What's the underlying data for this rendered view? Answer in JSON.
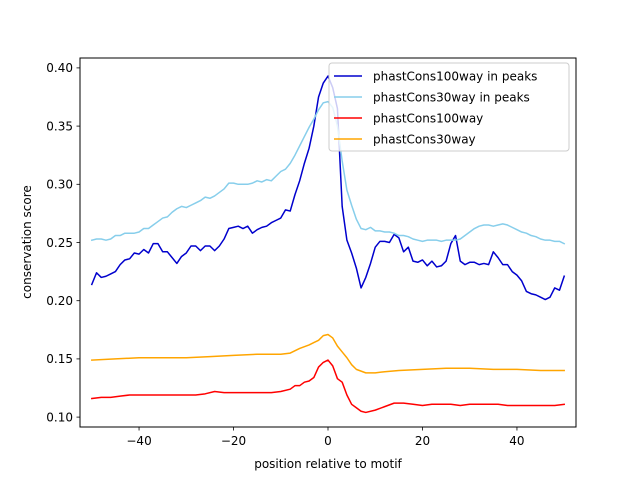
{
  "chart_data": {
    "type": "line",
    "title": "",
    "xlabel": "position relative to motif",
    "ylabel": "conservation score",
    "xlim": [
      -52.5,
      52.5
    ],
    "ylim": [
      0.0915,
      0.4085
    ],
    "xticks": [
      -40,
      -20,
      0,
      20,
      40
    ],
    "xtick_labels": [
      "−40",
      "−20",
      "0",
      "20",
      "40"
    ],
    "yticks": [
      0.1,
      0.15,
      0.2,
      0.25,
      0.3,
      0.35,
      0.4
    ],
    "ytick_labels": [
      "0.10",
      "0.15",
      "0.20",
      "0.25",
      "0.30",
      "0.35",
      "0.40"
    ],
    "grid": false,
    "legend_position": "top-right",
    "series": [
      {
        "name": "phastCons100way in peaks",
        "color": "#0000cd",
        "points": [
          [
            -50,
            0.214
          ],
          [
            -49,
            0.224
          ],
          [
            -48,
            0.22
          ],
          [
            -47,
            0.221
          ],
          [
            -46,
            0.223
          ],
          [
            -45,
            0.225
          ],
          [
            -44,
            0.231
          ],
          [
            -43,
            0.235
          ],
          [
            -42,
            0.236
          ],
          [
            -41,
            0.241
          ],
          [
            -40,
            0.24
          ],
          [
            -39,
            0.244
          ],
          [
            -38,
            0.241
          ],
          [
            -37,
            0.249
          ],
          [
            -36,
            0.249
          ],
          [
            -35,
            0.242
          ],
          [
            -34,
            0.242
          ],
          [
            -33,
            0.237
          ],
          [
            -32,
            0.232
          ],
          [
            -31,
            0.238
          ],
          [
            -30,
            0.241
          ],
          [
            -29,
            0.247
          ],
          [
            -28,
            0.247
          ],
          [
            -27,
            0.243
          ],
          [
            -26,
            0.247
          ],
          [
            -25,
            0.247
          ],
          [
            -24,
            0.243
          ],
          [
            -23,
            0.247
          ],
          [
            -22,
            0.253
          ],
          [
            -21,
            0.262
          ],
          [
            -20,
            0.263
          ],
          [
            -19,
            0.264
          ],
          [
            -18,
            0.262
          ],
          [
            -17,
            0.264
          ],
          [
            -16,
            0.258
          ],
          [
            -15,
            0.261
          ],
          [
            -14,
            0.263
          ],
          [
            -13,
            0.264
          ],
          [
            -12,
            0.267
          ],
          [
            -11,
            0.269
          ],
          [
            -10,
            0.271
          ],
          [
            -9,
            0.278
          ],
          [
            -8,
            0.277
          ],
          [
            -7,
            0.291
          ],
          [
            -6,
            0.303
          ],
          [
            -5,
            0.318
          ],
          [
            -4,
            0.331
          ],
          [
            -3,
            0.35
          ],
          [
            -2,
            0.375
          ],
          [
            -1,
            0.387
          ],
          [
            0,
            0.393
          ],
          [
            1,
            0.383
          ],
          [
            2,
            0.365
          ],
          [
            3,
            0.281
          ],
          [
            4,
            0.252
          ],
          [
            5,
            0.241
          ],
          [
            6,
            0.228
          ],
          [
            7,
            0.211
          ],
          [
            8,
            0.22
          ],
          [
            9,
            0.232
          ],
          [
            10,
            0.246
          ],
          [
            11,
            0.251
          ],
          [
            12,
            0.251
          ],
          [
            13,
            0.25
          ],
          [
            14,
            0.257
          ],
          [
            15,
            0.254
          ],
          [
            16,
            0.242
          ],
          [
            17,
            0.246
          ],
          [
            18,
            0.234
          ],
          [
            19,
            0.233
          ],
          [
            20,
            0.235
          ],
          [
            21,
            0.23
          ],
          [
            22,
            0.234
          ],
          [
            23,
            0.229
          ],
          [
            24,
            0.23
          ],
          [
            25,
            0.234
          ],
          [
            26,
            0.249
          ],
          [
            27,
            0.256
          ],
          [
            28,
            0.234
          ],
          [
            29,
            0.231
          ],
          [
            30,
            0.233
          ],
          [
            31,
            0.233
          ],
          [
            32,
            0.231
          ],
          [
            33,
            0.232
          ],
          [
            34,
            0.231
          ],
          [
            35,
            0.242
          ],
          [
            36,
            0.237
          ],
          [
            37,
            0.231
          ],
          [
            38,
            0.231
          ],
          [
            39,
            0.225
          ],
          [
            40,
            0.222
          ],
          [
            41,
            0.217
          ],
          [
            42,
            0.208
          ],
          [
            43,
            0.206
          ],
          [
            44,
            0.205
          ],
          [
            45,
            0.203
          ],
          [
            46,
            0.201
          ],
          [
            47,
            0.203
          ],
          [
            48,
            0.211
          ],
          [
            49,
            0.209
          ],
          [
            50,
            0.221
          ]
        ]
      },
      {
        "name": "phastCons30way in peaks",
        "color": "#87ceeb",
        "points": [
          [
            -50,
            0.252
          ],
          [
            -49,
            0.253
          ],
          [
            -48,
            0.253
          ],
          [
            -47,
            0.252
          ],
          [
            -46,
            0.253
          ],
          [
            -45,
            0.256
          ],
          [
            -44,
            0.256
          ],
          [
            -43,
            0.258
          ],
          [
            -42,
            0.258
          ],
          [
            -41,
            0.258
          ],
          [
            -40,
            0.259
          ],
          [
            -39,
            0.262
          ],
          [
            -38,
            0.262
          ],
          [
            -37,
            0.265
          ],
          [
            -36,
            0.268
          ],
          [
            -35,
            0.271
          ],
          [
            -34,
            0.272
          ],
          [
            -33,
            0.276
          ],
          [
            -32,
            0.279
          ],
          [
            -31,
            0.281
          ],
          [
            -30,
            0.28
          ],
          [
            -29,
            0.282
          ],
          [
            -28,
            0.284
          ],
          [
            -27,
            0.286
          ],
          [
            -26,
            0.289
          ],
          [
            -25,
            0.288
          ],
          [
            -24,
            0.29
          ],
          [
            -23,
            0.293
          ],
          [
            -22,
            0.296
          ],
          [
            -21,
            0.301
          ],
          [
            -20,
            0.301
          ],
          [
            -19,
            0.3
          ],
          [
            -18,
            0.3
          ],
          [
            -17,
            0.3
          ],
          [
            -16,
            0.301
          ],
          [
            -15,
            0.303
          ],
          [
            -14,
            0.302
          ],
          [
            -13,
            0.304
          ],
          [
            -12,
            0.303
          ],
          [
            -11,
            0.307
          ],
          [
            -10,
            0.311
          ],
          [
            -9,
            0.313
          ],
          [
            -8,
            0.318
          ],
          [
            -7,
            0.325
          ],
          [
            -6,
            0.333
          ],
          [
            -5,
            0.341
          ],
          [
            -4,
            0.349
          ],
          [
            -3,
            0.356
          ],
          [
            -2,
            0.364
          ],
          [
            -1,
            0.37
          ],
          [
            0,
            0.371
          ],
          [
            1,
            0.366
          ],
          [
            2,
            0.35
          ],
          [
            3,
            0.32
          ],
          [
            4,
            0.295
          ],
          [
            5,
            0.282
          ],
          [
            6,
            0.27
          ],
          [
            7,
            0.262
          ],
          [
            8,
            0.261
          ],
          [
            9,
            0.263
          ],
          [
            10,
            0.26
          ],
          [
            11,
            0.26
          ],
          [
            12,
            0.259
          ],
          [
            13,
            0.259
          ],
          [
            14,
            0.258
          ],
          [
            15,
            0.256
          ],
          [
            16,
            0.256
          ],
          [
            17,
            0.255
          ],
          [
            18,
            0.253
          ],
          [
            19,
            0.252
          ],
          [
            20,
            0.251
          ],
          [
            21,
            0.252
          ],
          [
            22,
            0.252
          ],
          [
            23,
            0.252
          ],
          [
            24,
            0.251
          ],
          [
            25,
            0.252
          ],
          [
            26,
            0.252
          ],
          [
            27,
            0.252
          ],
          [
            28,
            0.253
          ],
          [
            29,
            0.256
          ],
          [
            30,
            0.259
          ],
          [
            31,
            0.262
          ],
          [
            32,
            0.264
          ],
          [
            33,
            0.265
          ],
          [
            34,
            0.265
          ],
          [
            35,
            0.264
          ],
          [
            36,
            0.265
          ],
          [
            37,
            0.266
          ],
          [
            38,
            0.265
          ],
          [
            39,
            0.263
          ],
          [
            40,
            0.261
          ],
          [
            41,
            0.259
          ],
          [
            42,
            0.258
          ],
          [
            43,
            0.256
          ],
          [
            44,
            0.255
          ],
          [
            45,
            0.253
          ],
          [
            46,
            0.252
          ],
          [
            47,
            0.252
          ],
          [
            48,
            0.251
          ],
          [
            49,
            0.251
          ],
          [
            50,
            0.249
          ]
        ]
      },
      {
        "name": "phastCons100way",
        "color": "#ff0000",
        "points": [
          [
            -50,
            0.116
          ],
          [
            -48,
            0.117
          ],
          [
            -46,
            0.117
          ],
          [
            -44,
            0.118
          ],
          [
            -42,
            0.119
          ],
          [
            -40,
            0.119
          ],
          [
            -38,
            0.119
          ],
          [
            -36,
            0.119
          ],
          [
            -34,
            0.119
          ],
          [
            -32,
            0.119
          ],
          [
            -30,
            0.119
          ],
          [
            -28,
            0.119
          ],
          [
            -26,
            0.12
          ],
          [
            -24,
            0.122
          ],
          [
            -22,
            0.121
          ],
          [
            -20,
            0.121
          ],
          [
            -18,
            0.121
          ],
          [
            -16,
            0.121
          ],
          [
            -14,
            0.121
          ],
          [
            -12,
            0.121
          ],
          [
            -10,
            0.122
          ],
          [
            -8,
            0.124
          ],
          [
            -7,
            0.127
          ],
          [
            -6,
            0.127
          ],
          [
            -5,
            0.13
          ],
          [
            -4,
            0.131
          ],
          [
            -3,
            0.134
          ],
          [
            -2,
            0.143
          ],
          [
            -1,
            0.147
          ],
          [
            0,
            0.149
          ],
          [
            1,
            0.144
          ],
          [
            2,
            0.133
          ],
          [
            3,
            0.13
          ],
          [
            4,
            0.119
          ],
          [
            5,
            0.111
          ],
          [
            6,
            0.108
          ],
          [
            7,
            0.105
          ],
          [
            8,
            0.104
          ],
          [
            10,
            0.106
          ],
          [
            12,
            0.109
          ],
          [
            14,
            0.112
          ],
          [
            16,
            0.112
          ],
          [
            18,
            0.111
          ],
          [
            20,
            0.11
          ],
          [
            22,
            0.111
          ],
          [
            24,
            0.111
          ],
          [
            26,
            0.111
          ],
          [
            28,
            0.11
          ],
          [
            30,
            0.111
          ],
          [
            32,
            0.111
          ],
          [
            34,
            0.111
          ],
          [
            36,
            0.111
          ],
          [
            38,
            0.11
          ],
          [
            40,
            0.11
          ],
          [
            42,
            0.11
          ],
          [
            44,
            0.11
          ],
          [
            46,
            0.11
          ],
          [
            48,
            0.11
          ],
          [
            50,
            0.111
          ]
        ]
      },
      {
        "name": "phastCons30way",
        "color": "#ffa500",
        "points": [
          [
            -50,
            0.149
          ],
          [
            -45,
            0.15
          ],
          [
            -40,
            0.151
          ],
          [
            -35,
            0.151
          ],
          [
            -30,
            0.151
          ],
          [
            -25,
            0.152
          ],
          [
            -20,
            0.153
          ],
          [
            -15,
            0.154
          ],
          [
            -10,
            0.154
          ],
          [
            -8,
            0.155
          ],
          [
            -6,
            0.159
          ],
          [
            -4,
            0.162
          ],
          [
            -3,
            0.164
          ],
          [
            -2,
            0.166
          ],
          [
            -1,
            0.17
          ],
          [
            0,
            0.171
          ],
          [
            1,
            0.168
          ],
          [
            2,
            0.161
          ],
          [
            3,
            0.156
          ],
          [
            4,
            0.151
          ],
          [
            5,
            0.145
          ],
          [
            6,
            0.141
          ],
          [
            8,
            0.138
          ],
          [
            10,
            0.138
          ],
          [
            12,
            0.139
          ],
          [
            15,
            0.14
          ],
          [
            20,
            0.141
          ],
          [
            25,
            0.142
          ],
          [
            30,
            0.142
          ],
          [
            35,
            0.141
          ],
          [
            40,
            0.141
          ],
          [
            45,
            0.14
          ],
          [
            50,
            0.14
          ]
        ]
      }
    ]
  }
}
